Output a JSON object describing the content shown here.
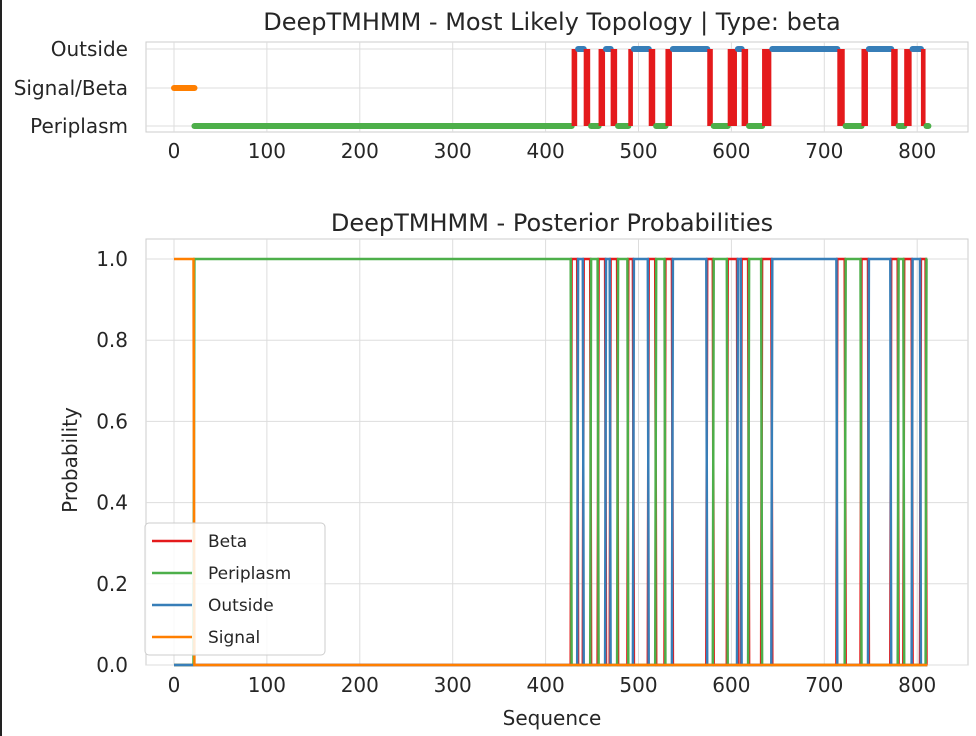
{
  "chart_data": [
    {
      "type": "line",
      "title": "DeepTMHMM - Most Likely Topology | Type: beta",
      "xlabel": "",
      "ylabel": "",
      "xlim": [
        -30,
        855
      ],
      "xticks": [
        0,
        100,
        200,
        300,
        400,
        500,
        600,
        700,
        800
      ],
      "yticks": [
        "Outside",
        "Signal/Beta",
        "Periplasm"
      ],
      "grid": true,
      "segments": [
        {
          "state": "Signal",
          "start": 0,
          "end": 21
        },
        {
          "state": "Periplasm",
          "start": 22,
          "end": 427
        },
        {
          "state": "Beta",
          "start": 428,
          "end": 434
        },
        {
          "state": "Outside",
          "start": 435,
          "end": 440
        },
        {
          "state": "Beta",
          "start": 441,
          "end": 448
        },
        {
          "state": "Periplasm",
          "start": 449,
          "end": 456
        },
        {
          "state": "Beta",
          "start": 457,
          "end": 464
        },
        {
          "state": "Outside",
          "start": 465,
          "end": 469
        },
        {
          "state": "Beta",
          "start": 470,
          "end": 477
        },
        {
          "state": "Periplasm",
          "start": 478,
          "end": 488
        },
        {
          "state": "Beta",
          "start": 489,
          "end": 494
        },
        {
          "state": "Outside",
          "start": 495,
          "end": 510
        },
        {
          "state": "Beta",
          "start": 511,
          "end": 518
        },
        {
          "state": "Periplasm",
          "start": 519,
          "end": 528
        },
        {
          "state": "Beta",
          "start": 529,
          "end": 536
        },
        {
          "state": "Outside",
          "start": 537,
          "end": 573
        },
        {
          "state": "Beta",
          "start": 574,
          "end": 580
        },
        {
          "state": "Periplasm",
          "start": 581,
          "end": 595
        },
        {
          "state": "Beta",
          "start": 596,
          "end": 606
        },
        {
          "state": "Outside",
          "start": 607,
          "end": 610
        },
        {
          "state": "Beta",
          "start": 611,
          "end": 618
        },
        {
          "state": "Periplasm",
          "start": 619,
          "end": 632
        },
        {
          "state": "Beta",
          "start": 633,
          "end": 643
        },
        {
          "state": "Outside",
          "start": 644,
          "end": 713
        },
        {
          "state": "Beta",
          "start": 714,
          "end": 722
        },
        {
          "state": "Periplasm",
          "start": 723,
          "end": 739
        },
        {
          "state": "Beta",
          "start": 740,
          "end": 747
        },
        {
          "state": "Outside",
          "start": 748,
          "end": 771
        },
        {
          "state": "Beta",
          "start": 772,
          "end": 779
        },
        {
          "state": "Periplasm",
          "start": 780,
          "end": 785
        },
        {
          "state": "Beta",
          "start": 786,
          "end": 794
        },
        {
          "state": "Outside",
          "start": 795,
          "end": 803
        },
        {
          "state": "Beta",
          "start": 804,
          "end": 809
        },
        {
          "state": "Periplasm",
          "start": 810,
          "end": 811
        }
      ]
    },
    {
      "type": "line",
      "title": "DeepTMHMM - Posterior Probabilities",
      "xlabel": "Sequence",
      "ylabel": "Probability",
      "xlim": [
        -30,
        855
      ],
      "ylim": [
        0,
        1.05
      ],
      "xticks": [
        0,
        100,
        200,
        300,
        400,
        500,
        600,
        700,
        800
      ],
      "yticks": [
        0.0,
        0.2,
        0.4,
        0.6,
        0.8,
        1.0
      ],
      "ytick_labels": [
        "0.0",
        "0.2",
        "0.4",
        "0.6",
        "0.8",
        "1.0"
      ],
      "grid": true,
      "legend_position": "lower-left",
      "series": [
        {
          "name": "Beta",
          "color": "#e41a1c"
        },
        {
          "name": "Periplasm",
          "color": "#4daf4a"
        },
        {
          "name": "Outside",
          "color": "#377eb8"
        },
        {
          "name": "Signal",
          "color": "#ff7f00"
        }
      ],
      "note": "probabilities are 1.0 for the state given by segments in the topology chart, 0.0 otherwise"
    }
  ]
}
